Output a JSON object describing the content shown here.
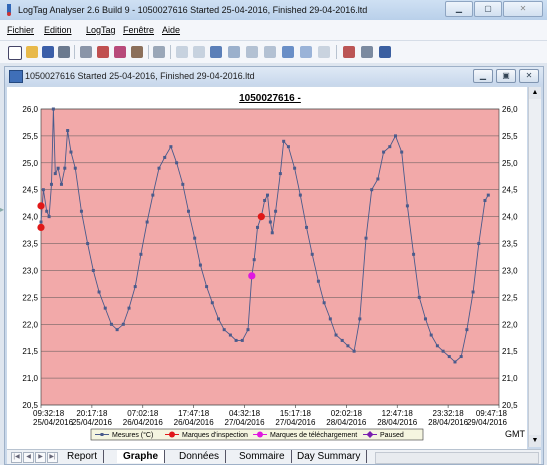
{
  "window": {
    "title": "LogTag Analyser 2.6 Build 9 - 1050027616 Started 25-04-2016, Finished 29-04-2016.ltd"
  },
  "menu": [
    "Fichier",
    "Edition",
    "LogTag",
    "Fenêtre",
    "Aide"
  ],
  "document": {
    "title": "1050027616 Started 25-04-2016, Finished 29-04-2016.ltd"
  },
  "tabs": [
    "Report",
    "Graphe",
    "Données",
    "Sommaire",
    "Day Summary"
  ],
  "active_tab": "Graphe",
  "timezone": "GMT",
  "colors": {
    "plot_bg": "#f2a9a9",
    "series": "#4a5b8c",
    "inspection": "#e01818",
    "download": "#e018e0",
    "paused": "#7a1fb0"
  },
  "chart_data": {
    "type": "line",
    "title": "1050027616 -",
    "ylim": [
      20.5,
      26.0
    ],
    "yticks": [
      "26,0",
      "25,5",
      "25,0",
      "24,5",
      "24,0",
      "23,5",
      "23,0",
      "22,5",
      "22,0",
      "21,5",
      "21,0",
      "20,5"
    ],
    "xticks": [
      {
        "time": "09:32:18",
        "date": "25/04/2016"
      },
      {
        "time": "20:17:18",
        "date": "25/04/2016"
      },
      {
        "time": "07:02:18",
        "date": "26/04/2016"
      },
      {
        "time": "17:47:18",
        "date": "26/04/2016"
      },
      {
        "time": "04:32:18",
        "date": "27/04/2016"
      },
      {
        "time": "15:17:18",
        "date": "27/04/2016"
      },
      {
        "time": "02:02:18",
        "date": "28/04/2016"
      },
      {
        "time": "12:47:18",
        "date": "28/04/2016"
      },
      {
        "time": "23:32:18",
        "date": "28/04/2016"
      },
      {
        "time": "09:47:18",
        "date": "29/04/2016"
      }
    ],
    "x_hours_range": [
      0,
      96.25
    ],
    "series": [
      {
        "name": "Mesures (°C)",
        "points": [
          [
            0,
            23.9
          ],
          [
            0.5,
            24.5
          ],
          [
            1.2,
            24.1
          ],
          [
            1.7,
            24.0
          ],
          [
            2.2,
            24.6
          ],
          [
            2.6,
            26.0
          ],
          [
            3.0,
            24.8
          ],
          [
            3.6,
            24.9
          ],
          [
            4.3,
            24.6
          ],
          [
            5.0,
            24.9
          ],
          [
            5.6,
            25.6
          ],
          [
            6.3,
            25.2
          ],
          [
            7.2,
            24.9
          ],
          [
            8.5,
            24.1
          ],
          [
            9.8,
            23.5
          ],
          [
            11.0,
            23.0
          ],
          [
            12.2,
            22.6
          ],
          [
            13.5,
            22.3
          ],
          [
            14.8,
            22.0
          ],
          [
            16.0,
            21.9
          ],
          [
            17.3,
            22.0
          ],
          [
            18.5,
            22.3
          ],
          [
            19.8,
            22.7
          ],
          [
            21.0,
            23.3
          ],
          [
            22.3,
            23.9
          ],
          [
            23.5,
            24.4
          ],
          [
            24.8,
            24.9
          ],
          [
            26.0,
            25.1
          ],
          [
            27.3,
            25.3
          ],
          [
            28.5,
            25.0
          ],
          [
            29.8,
            24.6
          ],
          [
            31.0,
            24.1
          ],
          [
            32.3,
            23.6
          ],
          [
            33.5,
            23.1
          ],
          [
            34.8,
            22.7
          ],
          [
            36.0,
            22.4
          ],
          [
            37.3,
            22.1
          ],
          [
            38.5,
            21.9
          ],
          [
            39.8,
            21.8
          ],
          [
            41.0,
            21.7
          ],
          [
            42.3,
            21.7
          ],
          [
            43.5,
            21.9
          ],
          [
            44.3,
            22.9
          ],
          [
            44.8,
            23.2
          ],
          [
            45.5,
            23.8
          ],
          [
            46.3,
            24.0
          ],
          [
            47.0,
            24.3
          ],
          [
            47.6,
            24.4
          ],
          [
            48.2,
            23.9
          ],
          [
            48.6,
            23.7
          ],
          [
            49.3,
            24.1
          ],
          [
            50.3,
            24.8
          ],
          [
            51.0,
            25.4
          ],
          [
            52.0,
            25.3
          ],
          [
            53.3,
            24.9
          ],
          [
            54.5,
            24.4
          ],
          [
            55.8,
            23.8
          ],
          [
            57.0,
            23.3
          ],
          [
            58.3,
            22.8
          ],
          [
            59.5,
            22.4
          ],
          [
            60.8,
            22.1
          ],
          [
            62.0,
            21.8
          ],
          [
            63.3,
            21.7
          ],
          [
            64.5,
            21.6
          ],
          [
            65.8,
            21.5
          ],
          [
            67.0,
            22.1
          ],
          [
            68.3,
            23.6
          ],
          [
            69.5,
            24.5
          ],
          [
            70.8,
            24.7
          ],
          [
            72.0,
            25.2
          ],
          [
            73.3,
            25.3
          ],
          [
            74.5,
            25.5
          ],
          [
            75.8,
            25.2
          ],
          [
            77.0,
            24.2
          ],
          [
            78.3,
            23.3
          ],
          [
            79.5,
            22.5
          ],
          [
            80.8,
            22.1
          ],
          [
            82.0,
            21.8
          ],
          [
            83.3,
            21.6
          ],
          [
            84.5,
            21.5
          ],
          [
            85.8,
            21.4
          ],
          [
            87.0,
            21.3
          ],
          [
            88.3,
            21.4
          ],
          [
            89.5,
            21.9
          ],
          [
            90.8,
            22.6
          ],
          [
            92.0,
            23.5
          ],
          [
            93.3,
            24.3
          ],
          [
            94.0,
            24.4
          ]
        ]
      }
    ],
    "markers": {
      "inspection": [
        [
          0,
          24.2
        ],
        [
          0,
          23.8
        ],
        [
          46.3,
          24.0
        ]
      ],
      "download": [
        [
          44.3,
          22.9
        ]
      ]
    },
    "legend": [
      {
        "label": "Mesures (°C)",
        "kind": "series"
      },
      {
        "label": "Marques d'inspection",
        "kind": "inspection"
      },
      {
        "label": "Marques de téléchargement",
        "kind": "download"
      },
      {
        "label": "Paused",
        "kind": "paused"
      }
    ],
    "legend_position": "bottom",
    "grid": true
  }
}
